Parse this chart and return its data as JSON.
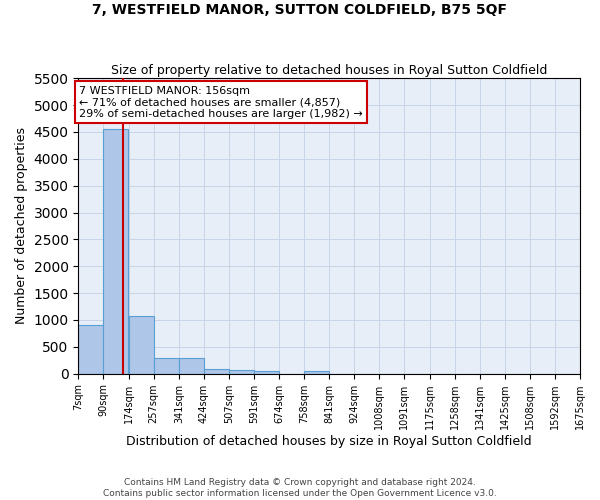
{
  "title": "7, WESTFIELD MANOR, SUTTON COLDFIELD, B75 5QF",
  "subtitle": "Size of property relative to detached houses in Royal Sutton Coldfield",
  "xlabel": "Distribution of detached houses by size in Royal Sutton Coldfield",
  "ylabel": "Number of detached properties",
  "footer_line1": "Contains HM Land Registry data © Crown copyright and database right 2024.",
  "footer_line2": "Contains public sector information licensed under the Open Government Licence v3.0.",
  "annotation_line1": "7 WESTFIELD MANOR: 156sqm",
  "annotation_line2": "← 71% of detached houses are smaller (4,857)",
  "annotation_line3": "29% of semi-detached houses are larger (1,982) →",
  "property_size": 156,
  "bin_edges": [
    7,
    90,
    174,
    257,
    341,
    424,
    507,
    591,
    674,
    758,
    841,
    924,
    1008,
    1091,
    1175,
    1258,
    1341,
    1425,
    1508,
    1592,
    1675
  ],
  "bar_heights": [
    900,
    4560,
    1070,
    300,
    295,
    80,
    70,
    55,
    0,
    55,
    0,
    0,
    0,
    0,
    0,
    0,
    0,
    0,
    0,
    0
  ],
  "bar_color": "#aec6e8",
  "bar_edge_color": "#5a9fd4",
  "vline_color": "#cc0000",
  "annotation_box_edgecolor": "#cc0000",
  "grid_color": "#c8d4e8",
  "bg_color": "#e8eef8",
  "ylim_max": 5500,
  "yticks": [
    0,
    500,
    1000,
    1500,
    2000,
    2500,
    3000,
    3500,
    4000,
    4500,
    5000,
    5500
  ]
}
